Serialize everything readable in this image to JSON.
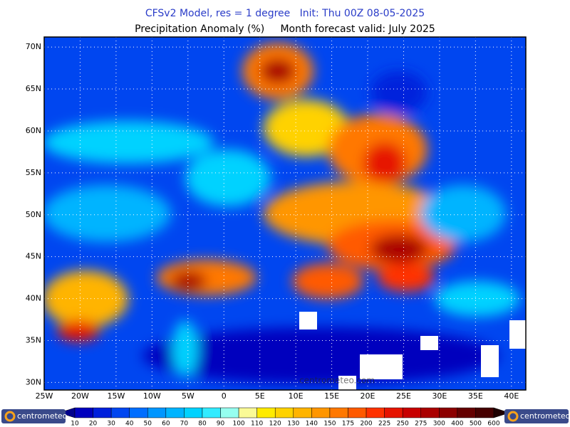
{
  "header": {
    "title": "CFSv2 Model, res = 1 degree   Init: Thu 00Z 08-05-2025",
    "subtitle": "Precipitation Anomaly (%)     Month forecast valid: July 2025"
  },
  "map": {
    "lat_labels": [
      "70N",
      "65N",
      "60N",
      "55N",
      "50N",
      "45N",
      "40N",
      "35N",
      "30N"
    ],
    "lon_labels": [
      "25W",
      "20W",
      "15W",
      "10W",
      "5W",
      "0",
      "5E",
      "10E",
      "15E",
      "20E",
      "25E",
      "30E",
      "35E",
      "40E"
    ],
    "watermark": "centrometeo.com"
  },
  "colorbar": {
    "labels": [
      10,
      20,
      30,
      40,
      50,
      60,
      70,
      80,
      90,
      100,
      110,
      120,
      130,
      140,
      150,
      175,
      200,
      225,
      250,
      275,
      300,
      400,
      500,
      600
    ],
    "colors": [
      "#00008c",
      "#0000be",
      "#0020dc",
      "#0046f0",
      "#006eff",
      "#0096ff",
      "#00b4ff",
      "#00d2ff",
      "#32ebff",
      "#96fff0",
      "#fafa96",
      "#ffeb00",
      "#ffd200",
      "#ffb400",
      "#ff9600",
      "#ff7800",
      "#ff5a00",
      "#ff3200",
      "#e61400",
      "#c80000",
      "#aa0000",
      "#8c0000",
      "#640000",
      "#460000",
      "#1e0000"
    ]
  },
  "logos": [
    "centrometeo",
    "centrometeo"
  ]
}
